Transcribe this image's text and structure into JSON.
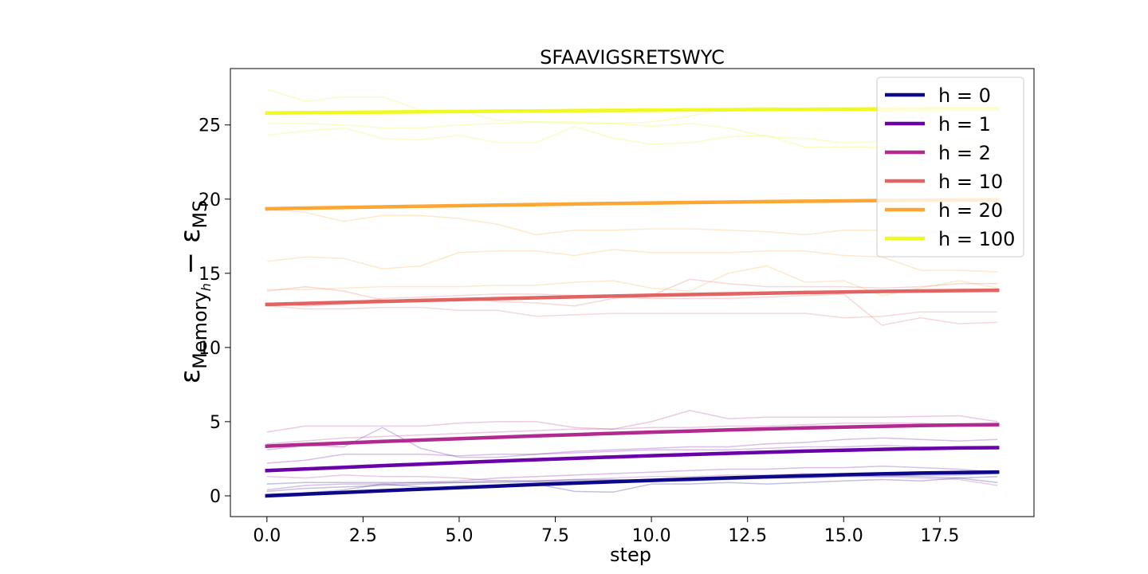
{
  "chart_data": {
    "type": "line",
    "title": "SFAAVIGSRETSWYC",
    "xlabel": "step",
    "ylabel": "εMemoryh − εMS",
    "ylabel_parts": {
      "eps1": "ε",
      "sub1": "Memory",
      "sub1_sub": "h",
      "minus": " − ",
      "eps2": "ε",
      "sub2": "MS"
    },
    "xlim": [
      -0.95,
      19.95
    ],
    "ylim": [
      -1.4,
      28.8
    ],
    "xticks": [
      0,
      2.5,
      5,
      7.5,
      10,
      12.5,
      15,
      17.5
    ],
    "xtick_labels": [
      "0.0",
      "2.5",
      "5.0",
      "7.5",
      "10.0",
      "12.5",
      "15.0",
      "17.5"
    ],
    "yticks": [
      0,
      5,
      10,
      15,
      20,
      25
    ],
    "ytick_labels": [
      "0",
      "5",
      "10",
      "15",
      "20",
      "25"
    ],
    "grid": false,
    "legend_position": "top-right",
    "x": [
      0,
      1,
      2,
      3,
      4,
      5,
      6,
      7,
      8,
      9,
      10,
      11,
      12,
      13,
      14,
      15,
      16,
      17,
      18,
      19
    ],
    "series": [
      {
        "name": "h = 0",
        "color": "#0d0887",
        "start": 0.0,
        "end": 1.6,
        "trials": [
          [
            0.1,
            0.2,
            0.4,
            0.8,
            0.6,
            0.5,
            0.6,
            0.8,
            0.3,
            0.25,
            0.8,
            0.8,
            0.9,
            0.8,
            0.9,
            1.0,
            1.1,
            1.0,
            1.2,
            1.3
          ],
          [
            0.3,
            0.5,
            0.6,
            0.7,
            0.8,
            0.9,
            0.9,
            0.95,
            1.0,
            1.05,
            1.1,
            1.1,
            1.2,
            1.2,
            1.3,
            1.4,
            1.4,
            1.3,
            1.2,
            0.9
          ],
          [
            0.8,
            0.9,
            0.9,
            0.9,
            0.9,
            0.9,
            1.0,
            1.0,
            1.1,
            1.1,
            1.0,
            1.0,
            1.1,
            1.2,
            1.2,
            1.3,
            1.3,
            1.4,
            1.4,
            1.5
          ]
        ]
      },
      {
        "name": "h = 1",
        "color": "#6a00a8",
        "start": 1.7,
        "end": 3.25,
        "trials": [
          [
            2.2,
            2.4,
            2.8,
            2.8,
            2.8,
            2.7,
            2.8,
            2.8,
            2.9,
            3.0,
            3.1,
            3.1,
            3.1,
            3.2,
            3.3,
            3.3,
            3.4,
            3.3,
            3.2,
            3.2
          ],
          [
            0.4,
            0.7,
            0.8,
            0.8,
            0.9,
            1.0,
            1.2,
            1.3,
            1.4,
            1.5,
            1.6,
            1.7,
            1.8,
            1.8,
            1.9,
            1.9,
            2.0,
            1.9,
            1.8,
            1.6
          ],
          [
            3.1,
            3.4,
            3.3,
            4.6,
            3.2,
            2.6,
            2.6,
            2.8,
            3.0,
            3.1,
            3.2,
            3.3,
            3.3,
            3.5,
            3.6,
            3.8,
            3.9,
            3.8,
            3.7,
            3.8
          ]
        ]
      },
      {
        "name": "h = 2",
        "color": "#b12a90",
        "start": 3.35,
        "end": 4.8,
        "trials": [
          [
            4.3,
            4.7,
            4.7,
            4.7,
            4.7,
            4.9,
            5.0,
            5.0,
            4.6,
            4.5,
            5.0,
            5.75,
            5.2,
            5.3,
            5.3,
            5.3,
            5.3,
            5.35,
            5.4,
            5.0
          ],
          [
            3.5,
            3.7,
            3.9,
            4.0,
            4.1,
            4.2,
            4.3,
            4.4,
            4.5,
            4.5,
            4.6,
            4.6,
            4.7,
            4.7,
            4.8,
            4.9,
            4.9,
            4.9,
            4.8,
            4.7
          ],
          [
            1.3,
            1.2,
            1.4,
            1.3,
            1.3,
            1.2,
            1.0,
            1.0,
            1.1,
            1.2,
            1.3,
            1.3,
            1.4,
            1.4,
            1.5,
            1.4,
            1.3,
            1.2,
            1.1,
            0.7
          ]
        ]
      },
      {
        "name": "h = 10",
        "color": "#e16462",
        "start": 12.9,
        "end": 13.85,
        "trials": [
          [
            13.8,
            14.1,
            13.8,
            13.2,
            13.2,
            13.3,
            13.1,
            13.0,
            12.8,
            13.3,
            13.5,
            14.6,
            14.3,
            14.1,
            14.1,
            14.1,
            14.0,
            14.1,
            14.3,
            14.3
          ],
          [
            12.8,
            12.6,
            12.6,
            12.7,
            12.7,
            12.5,
            12.5,
            12.1,
            12.2,
            12.3,
            12.3,
            12.3,
            12.3,
            12.3,
            12.3,
            12.0,
            12.1,
            12.4,
            12.4,
            12.4
          ],
          [
            13.0,
            12.8,
            12.9,
            13.3,
            13.4,
            13.5,
            13.6,
            13.6,
            13.5,
            13.4,
            13.3,
            13.3,
            13.3,
            13.4,
            13.5,
            13.6,
            11.5,
            12.0,
            11.6,
            11.7
          ]
        ]
      },
      {
        "name": "h = 20",
        "color": "#fca636",
        "start": 19.35,
        "end": 19.95,
        "trials": [
          [
            15.8,
            16.1,
            16.0,
            15.3,
            15.5,
            16.4,
            16.5,
            16.5,
            16.2,
            16.6,
            16.4,
            16.4,
            16.4,
            16.5,
            16.5,
            16.2,
            16.1,
            15.2,
            15.2,
            15.1
          ],
          [
            19.3,
            19.1,
            18.5,
            18.9,
            18.9,
            18.7,
            18.3,
            17.6,
            17.9,
            17.9,
            18.0,
            18.0,
            17.9,
            17.8,
            17.6,
            17.9,
            17.9,
            17.8,
            17.8,
            17.8
          ],
          [
            13.9,
            13.9,
            14.0,
            14.1,
            14.1,
            14.1,
            14.2,
            14.2,
            14.4,
            14.5,
            14.0,
            13.8,
            15.0,
            15.5,
            14.4,
            14.5,
            13.5,
            14.0,
            14.5,
            14.0
          ]
        ]
      },
      {
        "name": "h = 100",
        "color": "#f0f921",
        "start": 25.8,
        "end": 26.1,
        "trials": [
          [
            27.4,
            26.6,
            26.9,
            26.9,
            26.0,
            26.0,
            25.3,
            25.2,
            25.2,
            25.1,
            25.2,
            25.6,
            26.1,
            26.2,
            26.1,
            26.0,
            25.9,
            25.9,
            25.8,
            25.8
          ],
          [
            24.3,
            24.6,
            24.8,
            24.1,
            24.0,
            24.3,
            23.8,
            23.8,
            24.9,
            24.1,
            23.7,
            23.8,
            24.2,
            24.3,
            23.5,
            23.5,
            23.5,
            23.4,
            23.4,
            23.4
          ],
          [
            25.1,
            25.1,
            25.0,
            24.8,
            24.8,
            25.0,
            25.1,
            25.2,
            25.1,
            25.1,
            24.9,
            25.1,
            24.8,
            24.2,
            24.1,
            23.8,
            23.9,
            23.9,
            24.0,
            24.0
          ]
        ]
      }
    ]
  }
}
